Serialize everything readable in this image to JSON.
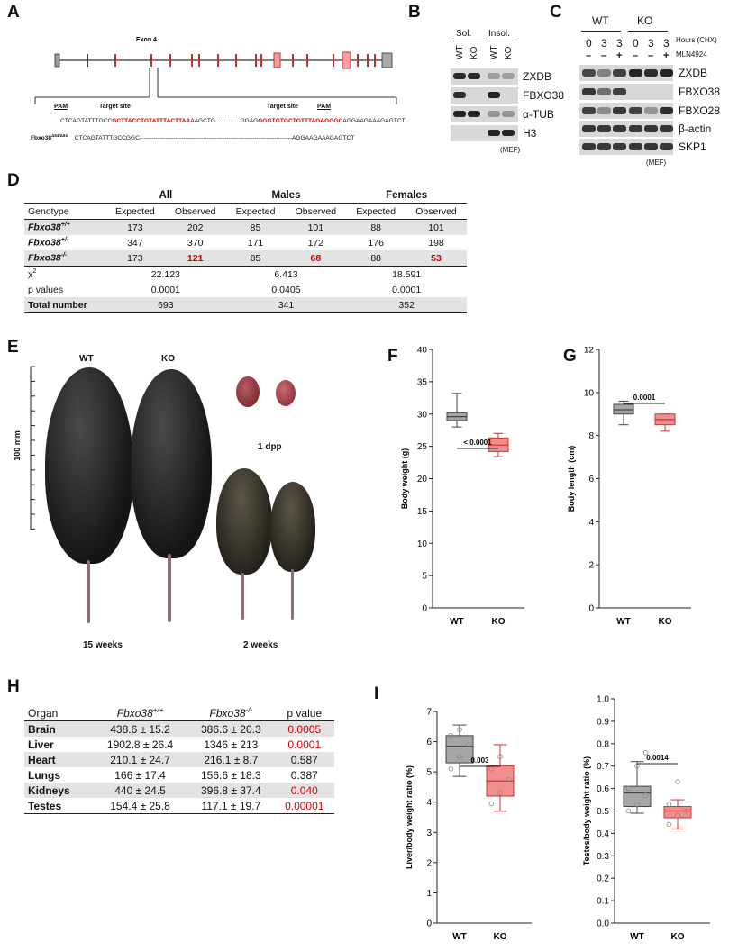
{
  "panels": {
    "A": "A",
    "B": "B",
    "C": "C",
    "D": "D",
    "E": "E",
    "F": "F",
    "G": "G",
    "H": "H",
    "I": "I"
  },
  "panelA": {
    "exon_label": "Exon 4",
    "pam_left": "PAM",
    "target_left": "Target site",
    "target_right": "Target site",
    "pam_right": "PAM",
    "wt_seq_pre": "CTCAGTATTTGCC",
    "wt_seq_red1": "GCTTACCTGTATTTACTTAA",
    "wt_seq_mid": "AAGCTG...............GGAG",
    "wt_seq_red2": "GGGTGTGCTGTTTAGAGGGC",
    "wt_seq_post": "AGGAAGAAAGAGTCT",
    "mut_label": "Fbxo38",
    "mut_sup": "Δ64/Δ64",
    "mut_seq_pre": "CTCAGTATTTGCCGGC",
    "mut_seq_dash": "-----------------------------------------------------------------------------",
    "mut_seq_post": "AGGAAGAAAGAGTCT"
  },
  "panelB": {
    "sol": "Sol.",
    "insol": "Insol.",
    "lanes": [
      "WT",
      "KO",
      "WT",
      "KO"
    ],
    "blots": [
      "ZXDB",
      "FBXO38",
      "α-TUB",
      "H3"
    ],
    "note": "(MEF)"
  },
  "panelC": {
    "wt": "WT",
    "ko": "KO",
    "hours_label": "Hours (CHX)",
    "hours": [
      "0",
      "3",
      "3",
      "0",
      "3",
      "3"
    ],
    "mln_label": "MLN4924",
    "mln": [
      "–",
      "–",
      "+",
      "–",
      "–",
      "+"
    ],
    "blots": [
      "ZXDB",
      "FBXO38",
      "FBXO28",
      "β-actin",
      "SKP1"
    ],
    "note": "(MEF)"
  },
  "tableD": {
    "groups": [
      "All",
      "Males",
      "Females"
    ],
    "header": [
      "Genotype",
      "Expected",
      "Observed",
      "Expected",
      "Observed",
      "Expected",
      "Observed"
    ],
    "rows": [
      {
        "geno": "Fbxo38",
        "sup": "+/+",
        "vals": [
          "173",
          "202",
          "85",
          "101",
          "88",
          "101"
        ]
      },
      {
        "geno": "Fbxo38",
        "sup": "+/-",
        "vals": [
          "347",
          "370",
          "171",
          "172",
          "176",
          "198"
        ]
      },
      {
        "geno": "Fbxo38",
        "sup": "-/-",
        "vals": [
          "173",
          "121",
          "85",
          "68",
          "88",
          "53"
        ]
      }
    ],
    "chi_label": "χ",
    "chi_sup": "2",
    "chi": [
      "22.123",
      "6.413",
      "18.591"
    ],
    "p_label": "p values",
    "p": [
      "0.0001",
      "0.0405",
      "0.0001"
    ],
    "total_label": "Total number",
    "total": [
      "693",
      "341",
      "352"
    ]
  },
  "panelE": {
    "scale": "100 mm",
    "wt": "WT",
    "ko": "KO",
    "dpp": "1 dpp",
    "weeks15": "15 weeks",
    "weeks2": "2 weeks"
  },
  "chart_data": [
    {
      "id": "F",
      "type": "box",
      "ylabel": "Body weight (g)",
      "ylim": [
        0,
        40
      ],
      "yticks": [
        0,
        5,
        10,
        15,
        20,
        25,
        30,
        35,
        40
      ],
      "categories": [
        "WT",
        "KO"
      ],
      "boxes": [
        {
          "name": "WT",
          "min": 28.0,
          "q1": 29.0,
          "median": 29.6,
          "q3": 30.2,
          "max": 33.2,
          "color": "#a6a6a6"
        },
        {
          "name": "KO",
          "min": 23.4,
          "q1": 24.2,
          "median": 25.2,
          "q3": 26.3,
          "max": 27.0,
          "color": "#f28e8e"
        }
      ],
      "pvalue": "< 0.0001"
    },
    {
      "id": "G",
      "type": "box",
      "ylabel": "Body length (cm)",
      "ylim": [
        0,
        12
      ],
      "yticks": [
        0,
        2,
        4,
        6,
        8,
        10,
        12
      ],
      "categories": [
        "WT",
        "KO"
      ],
      "boxes": [
        {
          "name": "WT",
          "min": 8.5,
          "q1": 9.0,
          "median": 9.2,
          "q3": 9.45,
          "max": 9.6,
          "color": "#a6a6a6"
        },
        {
          "name": "KO",
          "min": 8.2,
          "q1": 8.5,
          "median": 8.75,
          "q3": 9.0,
          "max": 9.0,
          "color": "#f28e8e"
        }
      ],
      "pvalue": "0.0001"
    },
    {
      "id": "I-liver",
      "type": "box",
      "ylabel": "Liver/body weight ratio (%)",
      "ylim": [
        0,
        7
      ],
      "yticks": [
        0,
        1,
        2,
        3,
        4,
        5,
        6,
        7
      ],
      "categories": [
        "WT",
        "KO"
      ],
      "boxes": [
        {
          "name": "WT",
          "min": 4.85,
          "q1": 5.3,
          "median": 5.85,
          "q3": 6.2,
          "max": 6.55,
          "color": "#a6a6a6",
          "points": [
            5.1,
            5.5,
            5.9,
            6.2,
            6.4
          ]
        },
        {
          "name": "KO",
          "min": 3.7,
          "q1": 4.2,
          "median": 4.7,
          "q3": 5.2,
          "max": 5.9,
          "color": "#f28e8e",
          "points": [
            3.95,
            4.3,
            4.75,
            5.1,
            5.5
          ]
        }
      ],
      "pvalue": "0.003"
    },
    {
      "id": "I-testes",
      "type": "box",
      "ylabel": "Testes/body weight ratio (%)",
      "ylim": [
        0,
        1
      ],
      "yticks": [
        0.0,
        0.1,
        0.2,
        0.3,
        0.4,
        0.5,
        0.6,
        0.7,
        0.8,
        0.9,
        1.0
      ],
      "categories": [
        "WT",
        "KO"
      ],
      "boxes": [
        {
          "name": "WT",
          "min": 0.49,
          "q1": 0.52,
          "median": 0.58,
          "q3": 0.61,
          "max": 0.72,
          "color": "#a6a6a6",
          "points": [
            0.5,
            0.53,
            0.57,
            0.6,
            0.7,
            0.76
          ]
        },
        {
          "name": "KO",
          "min": 0.42,
          "q1": 0.47,
          "median": 0.5,
          "q3": 0.52,
          "max": 0.55,
          "color": "#f28e8e",
          "points": [
            0.44,
            0.48,
            0.5,
            0.53,
            0.63
          ]
        }
      ],
      "pvalue": "0.0014"
    }
  ],
  "tableH": {
    "head": [
      "Organ",
      "Fbxo38",
      "+/+",
      "Fbxo38",
      "-/-",
      "p value"
    ],
    "rows": [
      {
        "organ": "Brain",
        "a": "438.6 ± 15.2",
        "b": "386.6 ± 20.3",
        "p": "0.0005",
        "sig": true
      },
      {
        "organ": "Liver",
        "a": "1902.8 ± 26.4",
        "b": "1346 ± 213",
        "p": "0.0001",
        "sig": true
      },
      {
        "organ": "Heart",
        "a": "210.1 ± 24.7",
        "b": "216.1 ± 8.7",
        "p": "0.587",
        "sig": false
      },
      {
        "organ": "Lungs",
        "a": "166 ± 17.4",
        "b": "156.6 ± 18.3",
        "p": "0.387",
        "sig": false
      },
      {
        "organ": "Kidneys",
        "a": "440 ± 24.5",
        "b": "396.8 ± 37.4",
        "p": "0.040",
        "sig": true
      },
      {
        "organ": "Testes",
        "a": "154.4 ± 25.8",
        "b": "117.1 ± 19.7",
        "p": "0.00001",
        "sig": true
      }
    ]
  }
}
